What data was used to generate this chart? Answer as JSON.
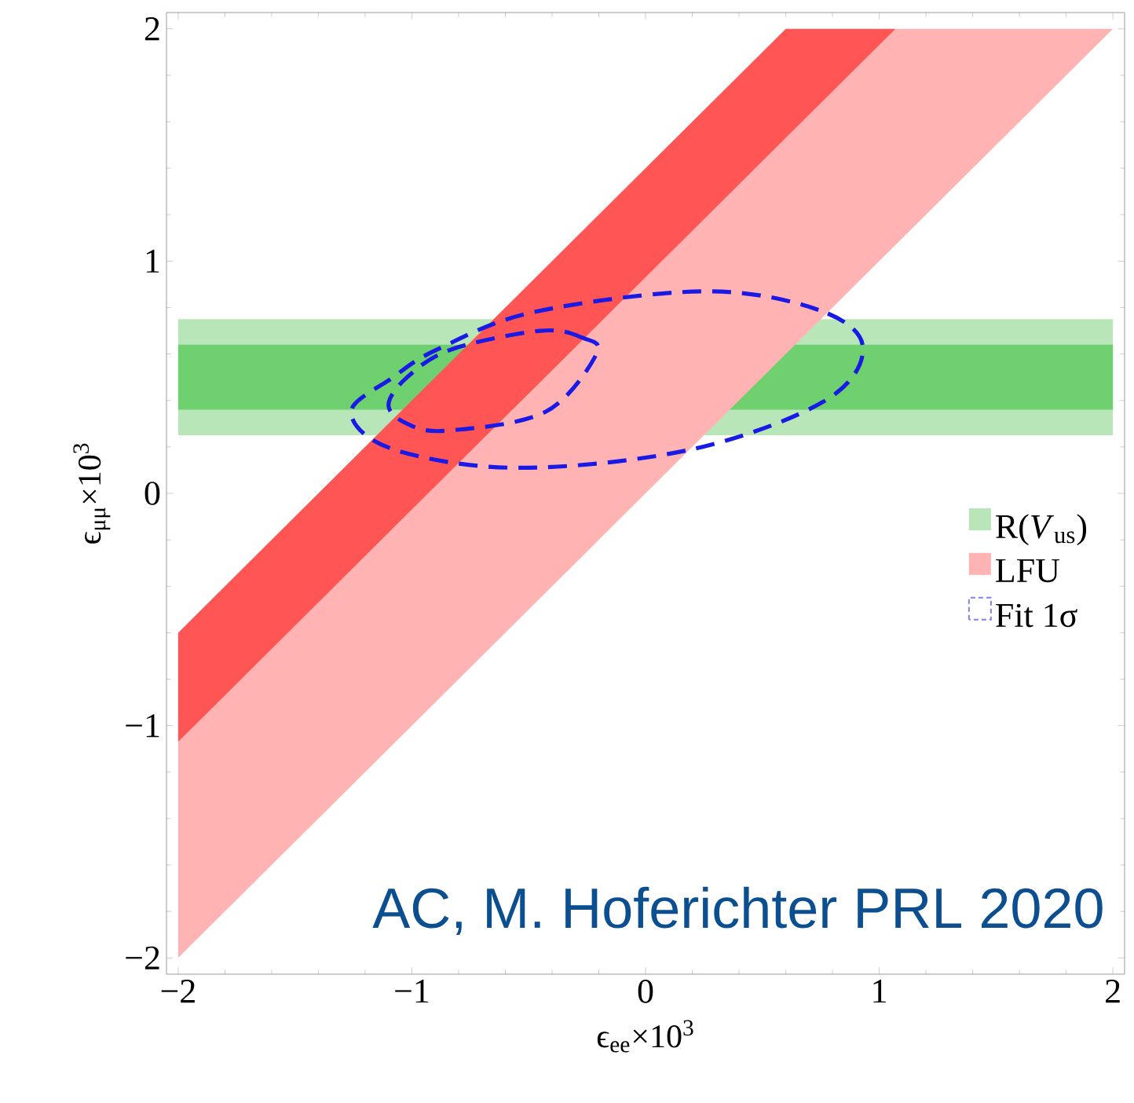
{
  "chart_data": {
    "type": "area",
    "xlabel": "ϵ$_{ee}$×10$^{3}$",
    "ylabel": "ϵ$_{μμ}$×10$^{3}$",
    "xlim": [
      -2.05,
      2.05
    ],
    "ylim": [
      -2.07,
      2.07
    ],
    "xticks": [
      {
        "value": -2,
        "label": "−2"
      },
      {
        "value": -1,
        "label": "−1"
      },
      0,
      1,
      2
    ],
    "yticks": [
      {
        "value": -2,
        "label": "−2"
      },
      {
        "value": -1,
        "label": "−1"
      },
      0,
      1,
      2
    ],
    "grid": false,
    "legend": "right",
    "annotations": [
      "AC, M. Hoferichter PRL 2020",
      "Fit 1σ"
    ],
    "series": [
      {
        "name": "R(*V*$_{us}$)",
        "color": "#b8e6b8",
        "x": [
          -2,
          2,
          2,
          -2
        ],
        "values": [
          0.75,
          0.75,
          0.25,
          0.25
        ]
      },
      {
        "color": "#6fd06f",
        "x": [
          -2,
          2,
          2,
          -2
        ],
        "values": [
          0.64,
          0.64,
          0.36,
          0.36
        ]
      },
      {
        "name": "LFU",
        "color": "#ffb3b3",
        "x": [
          -2,
          1.07,
          2,
          -2
        ],
        "values": [
          -1.07,
          2,
          2,
          -2
        ]
      },
      {
        "color": "#ff5555",
        "x": [
          -2,
          0.6,
          1.07,
          -2
        ],
        "values": [
          -0.6,
          2,
          2,
          -1.07
        ]
      }
    ]
  }
}
